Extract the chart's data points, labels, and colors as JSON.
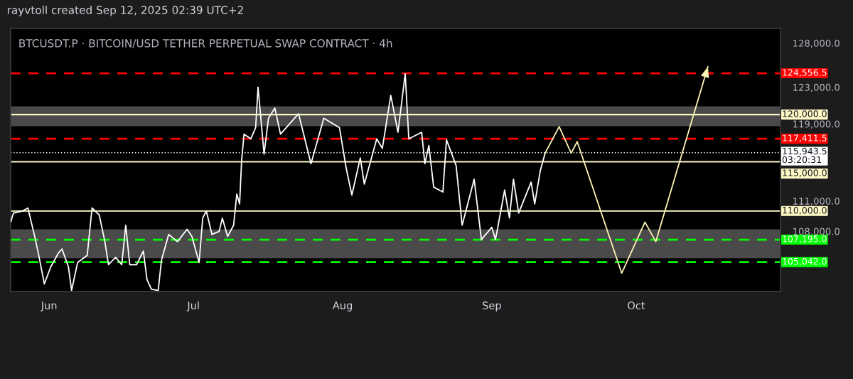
{
  "chart_data": {
    "type": "line",
    "title": "BTCUSDT.P · BITCOIN/USD TETHER PERPETUAL SWAP CONTRACT · 4h",
    "annotations": [
      "rayvtoll created Sep 12, 2025 02:39 UTC+2"
    ],
    "log": true,
    "xlim": [
      "2025-05-24",
      "2025-10-31"
    ],
    "xticks": [
      {
        "value": "2025-06-01",
        "label": "Jun"
      },
      {
        "value": "2025-07-01",
        "label": "Jul"
      },
      {
        "value": "2025-08-01",
        "label": "Aug"
      },
      {
        "value": "2025-09-01",
        "label": "Sep"
      },
      {
        "value": "2025-10-01",
        "label": "Oct"
      }
    ],
    "ylim": [
      102300,
      129700
    ],
    "yticks": [
      {
        "value": 108000,
        "label": "108,000.0"
      },
      {
        "value": 111000,
        "label": "111,000.0"
      },
      {
        "value": 119000,
        "label": "119,000.0"
      },
      {
        "value": 123000,
        "label": "123,000.0"
      },
      {
        "value": 128000,
        "label": "128,000.0"
      }
    ],
    "grid": false,
    "legend": false,
    "bands": [
      {
        "axis": "y",
        "from": 118750,
        "to": 120900,
        "color": "#4a4a4a"
      },
      {
        "axis": "y",
        "from": 105400,
        "to": 108200,
        "color": "#4a4a4a"
      }
    ],
    "ref_lines": [
      {
        "axis": "y",
        "value": 124556.5,
        "label": "124,556.5",
        "color": "#ff0000",
        "line_style": "dashed"
      },
      {
        "axis": "y",
        "value": 120000,
        "label": "120,000.0",
        "color": "#fff8c4",
        "line_style": "solid"
      },
      {
        "axis": "y",
        "value": 117411.5,
        "label": "117,411.5",
        "color": "#ff0000",
        "line_style": "dashed"
      },
      {
        "axis": "y",
        "value": 115943.5,
        "label": "115,943.5\n03:20:31",
        "color": "#ffffff",
        "line_style": "dotted"
      },
      {
        "axis": "y",
        "value": 115000,
        "label": "115,000.0",
        "color": "#fff8c4",
        "line_style": "solid"
      },
      {
        "axis": "y",
        "value": 110000,
        "label": "110,000.0",
        "color": "#fff8c4",
        "line_style": "solid"
      },
      {
        "axis": "y",
        "value": 107195,
        "label": "107,195.0",
        "color": "#00ff00",
        "line_style": "dashed"
      },
      {
        "axis": "y",
        "value": 105042,
        "label": "105,042.0",
        "color": "#00ff00",
        "line_style": "dashed"
      }
    ],
    "series": [
      {
        "color": "#ffffff",
        "x": [
          "2025-05-24",
          "2025-05-24T14:00",
          "2025-05-26T10:00",
          "2025-05-27T14:00",
          "2025-05-29",
          "2025-05-29T20:00",
          "2025-05-31",
          "2025-06-01T08:00",
          "2025-06-02T22:00",
          "2025-06-03T16:00",
          "2025-06-05",
          "2025-06-05T16:00",
          "2025-06-06T22:00",
          "2025-06-08T22:00",
          "2025-06-09T22:00",
          "2025-06-11T10:00",
          "2025-06-12T14:00",
          "2025-06-13T08:00",
          "2025-06-14T20:00",
          "2025-06-16T02:00",
          "2025-06-16T22:00",
          "2025-06-17T18:00",
          "2025-06-19T04:00",
          "2025-06-20T14:00",
          "2025-06-21T08:00",
          "2025-06-22T06:00",
          "2025-06-23T16:00",
          "2025-06-24T08:00",
          "2025-06-25T20:00",
          "2025-06-27T16:00",
          "2025-06-29T16:00",
          "2025-06-30T16:00",
          "2025-07-02T04:00",
          "2025-07-02T22:00",
          "2025-07-03T16:00",
          "2025-07-04T20:00",
          "2025-07-06T08:00",
          "2025-07-07",
          "2025-07-08T02:00",
          "2025-07-09T08:00",
          "2025-07-10",
          "2025-07-10T14:00",
          "2025-07-11",
          "2025-07-11T12:00",
          "2025-07-12T22:00",
          "2025-07-13T22:00",
          "2025-07-14T10:00",
          "2025-07-15",
          "2025-07-15T16:00",
          "2025-07-16T14:00",
          "2025-07-17T22:00",
          "2025-07-19T02:00",
          "2025-07-22T20:00",
          "2025-07-25T10:00",
          "2025-07-28T02:00",
          "2025-07-31T08:00",
          "2025-08-01T18:00",
          "2025-08-02T22:00",
          "2025-08-04T16:00",
          "2025-08-05T12:00",
          "2025-08-08T02:00",
          "2025-08-09T06:00",
          "2025-08-11",
          "2025-08-12T12:00",
          "2025-08-14",
          "2025-08-14T18:00",
          "2025-08-17T10:00",
          "2025-08-18T02:00",
          "2025-08-18T22:00",
          "2025-08-19T22:00",
          "2025-08-21T20:00",
          "2025-08-22T14:00",
          "2025-08-24T14:00",
          "2025-08-25T20:00",
          "2025-08-28T08:00",
          "2025-08-29T20:00",
          "2025-09-01",
          "2025-09-01T18:00",
          "2025-09-02T04:00",
          "2025-09-03T16:00",
          "2025-09-04T16:00",
          "2025-09-05T12:00",
          "2025-09-06T14:00",
          "2025-09-09T04:00",
          "2025-09-09T22:00",
          "2025-09-11T02:00",
          "2025-09-12T02:00"
        ],
        "values": [
          108900,
          109800,
          110000,
          110300,
          107500,
          105700,
          103000,
          104600,
          105900,
          106300,
          104600,
          102400,
          105000,
          105700,
          110300,
          109600,
          107000,
          104800,
          105500,
          104800,
          108600,
          104800,
          104800,
          106100,
          103400,
          102500,
          102400,
          105200,
          107700,
          107000,
          108200,
          107500,
          105000,
          109300,
          110000,
          107700,
          108000,
          109300,
          107500,
          108600,
          111700,
          110700,
          115100,
          117900,
          117400,
          118600,
          123000,
          119600,
          115800,
          119600,
          120700,
          117900,
          120100,
          114800,
          119600,
          118600,
          114300,
          111600,
          115400,
          112700,
          117400,
          116400,
          122100,
          118100,
          124500,
          117400,
          118100,
          114800,
          116700,
          112400,
          111900,
          117300,
          114600,
          108600,
          113200,
          107200,
          108400,
          107200,
          108200,
          112100,
          109300,
          113200,
          109800,
          112900,
          110700,
          114100,
          115900
        ]
      },
      {
        "color": "#fff5b5",
        "x": [
          "2025-09-12T02:00",
          "2025-09-15",
          "2025-09-17T12:00",
          "2025-09-18T18:00",
          "2025-09-28",
          "2025-10-02T20:00",
          "2025-10-05T02:00",
          "2025-10-15T22:00"
        ],
        "values": [
          115900,
          118700,
          115900,
          117100,
          104000,
          108900,
          107000,
          125300
        ]
      }
    ]
  }
}
